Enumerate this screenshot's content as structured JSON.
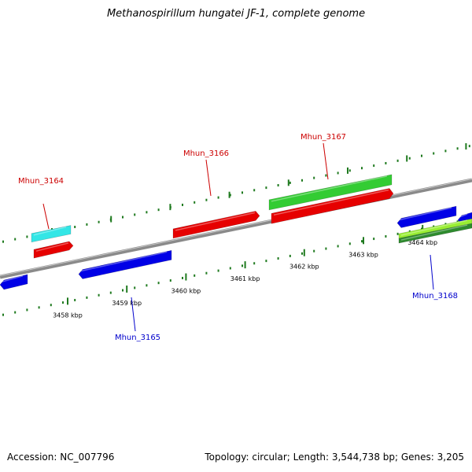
{
  "title": "Methanospirillum hungatei JF-1, complete genome",
  "footer": {
    "accession": "Accession: NC_007796",
    "topology": "Topology: circular; Length: 3,544,738 bp; Genes: 3,205"
  },
  "colors": {
    "backbone": "#8a8a8a",
    "ticks": "#1f7a1f",
    "forward_label": "#cc0000",
    "reverse_label": "#0000cc",
    "red_gene": "#e60000",
    "blue_gene": "#0000e6",
    "green_gene": "#33cc33",
    "cyan_gene": "#33e6e6",
    "lime_gene": "#99ee33"
  },
  "scale": {
    "ticks": [
      {
        "kbp": 3458,
        "label": "3458 kbp"
      },
      {
        "kbp": 3459,
        "label": "3459 kbp"
      },
      {
        "kbp": 3460,
        "label": "3460 kbp"
      },
      {
        "kbp": 3461,
        "label": "3461 kbp"
      },
      {
        "kbp": 3462,
        "label": "3462 kbp"
      },
      {
        "kbp": 3463,
        "label": "3463 kbp"
      },
      {
        "kbp": 3464,
        "label": "3464 kbp"
      }
    ]
  },
  "genes": [
    {
      "id": "Mhun_3164",
      "label": "Mhun_3164",
      "strand": "+",
      "color": "red_gene"
    },
    {
      "id": "Mhun_3165",
      "label": "Mhun_3165",
      "strand": "-",
      "color": "blue_gene"
    },
    {
      "id": "Mhun_3166",
      "label": "Mhun_3166",
      "strand": "+",
      "color": "red_gene"
    },
    {
      "id": "Mhun_3167",
      "label": "Mhun_3167",
      "strand": "+",
      "color": "red_gene"
    },
    {
      "id": "Mhun_3168",
      "label": "Mhun_3168",
      "strand": "-",
      "color": "blue_gene"
    }
  ]
}
